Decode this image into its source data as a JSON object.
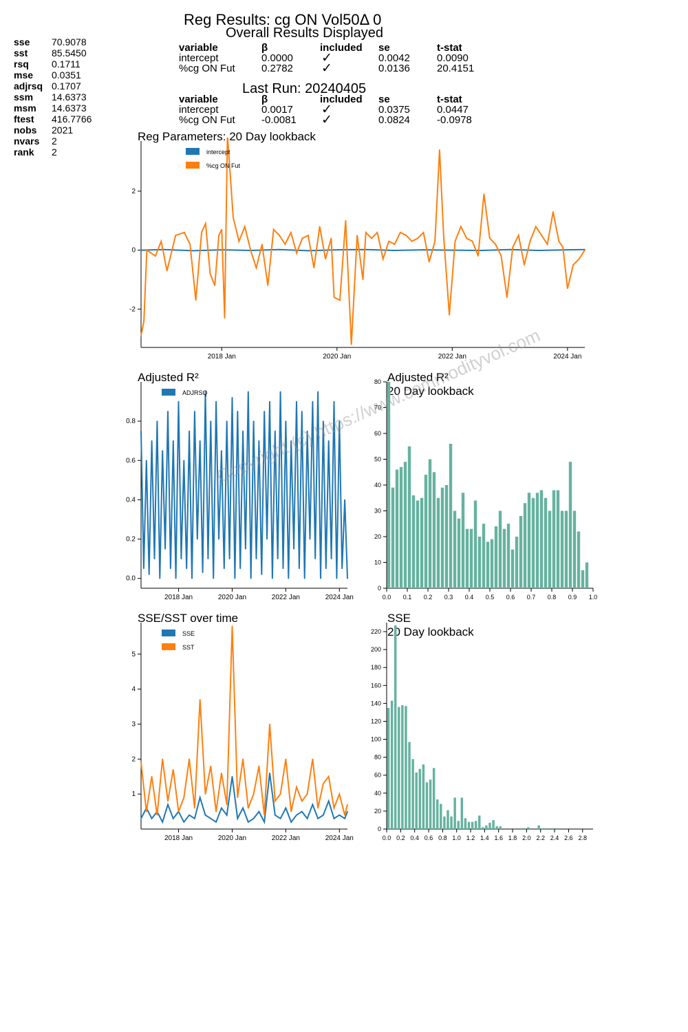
{
  "header": {
    "title": "Reg Results: cg ON Vol50Δ 0",
    "subtitle": "Overall Results Displayed",
    "last_run": "Last Run: 20240405"
  },
  "stats": [
    {
      "k": "sse",
      "v": "70.9078"
    },
    {
      "k": "sst",
      "v": "85.5450"
    },
    {
      "k": "rsq",
      "v": "0.1711"
    },
    {
      "k": "mse",
      "v": "0.0351"
    },
    {
      "k": "adjrsq",
      "v": "0.1707"
    },
    {
      "k": "ssm",
      "v": "14.6373"
    },
    {
      "k": "msm",
      "v": "14.6373"
    },
    {
      "k": "ftest",
      "v": "416.7766"
    },
    {
      "k": "nobs",
      "v": "2021"
    },
    {
      "k": "nvars",
      "v": "2"
    },
    {
      "k": "rank",
      "v": "2"
    }
  ],
  "table_headers": [
    "variable",
    "β",
    "included",
    "se",
    "t-stat"
  ],
  "overall_table": [
    [
      "intercept",
      "0.0000",
      "✓",
      "0.0042",
      "0.0090"
    ],
    [
      "%cg ON Fut",
      "0.2782",
      "✓",
      "0.0136",
      "20.4151"
    ]
  ],
  "last_table": [
    [
      "intercept",
      "0.0017",
      "✓",
      "0.0375",
      "0.0447"
    ],
    [
      "%cg ON Fut",
      "-0.0081",
      "✓",
      "0.0824",
      "-0.0978"
    ]
  ],
  "watermark": "Copyright (c) https://www.commodityvol.com",
  "colors": {
    "blue": "#1f77b4",
    "orange": "#ff7f0e",
    "teal": "#66b2a0"
  },
  "chart_data": [
    {
      "id": "params",
      "type": "line",
      "title": "Reg Parameters: 20 Day lookback",
      "ylim": [
        -3.3,
        3.7
      ],
      "yticks": [
        -2,
        0,
        2
      ],
      "xticks": [
        "2018 Jan",
        "2020 Jan",
        "2022 Jan",
        "2024 Jan"
      ],
      "xtick_pos": [
        2018,
        2020,
        2022,
        2024
      ],
      "xrange": [
        2016.6,
        2024.3
      ],
      "series": [
        {
          "name": "intercept",
          "color": "#1f77b4",
          "x": [
            2016.6,
            2017.0,
            2017.5,
            2018.0,
            2018.5,
            2019.0,
            2019.5,
            2020.0,
            2020.5,
            2021.0,
            2021.5,
            2022.0,
            2022.5,
            2023.0,
            2023.5,
            2024.0,
            2024.3
          ],
          "y": [
            0.0,
            0.02,
            -0.02,
            0.01,
            -0.01,
            0.02,
            -0.02,
            0.01,
            0.02,
            -0.01,
            0.01,
            0.0,
            -0.01,
            0.02,
            -0.01,
            0.01,
            0.02
          ]
        },
        {
          "name": "%cg ON Fut",
          "color": "#ff7f0e",
          "x": [
            2016.6,
            2016.65,
            2016.7,
            2016.85,
            2016.95,
            2017.05,
            2017.2,
            2017.35,
            2017.45,
            2017.55,
            2017.65,
            2017.72,
            2017.8,
            2017.88,
            2017.95,
            2018.0,
            2018.05,
            2018.1,
            2018.2,
            2018.3,
            2018.4,
            2018.5,
            2018.6,
            2018.7,
            2018.8,
            2018.9,
            2019.0,
            2019.1,
            2019.2,
            2019.3,
            2019.4,
            2019.5,
            2019.6,
            2019.7,
            2019.8,
            2019.9,
            2019.95,
            2020.05,
            2020.15,
            2020.25,
            2020.35,
            2020.45,
            2020.5,
            2020.6,
            2020.7,
            2020.8,
            2020.9,
            2021.0,
            2021.1,
            2021.2,
            2021.3,
            2021.4,
            2021.5,
            2021.6,
            2021.7,
            2021.78,
            2021.85,
            2021.95,
            2022.05,
            2022.15,
            2022.25,
            2022.35,
            2022.45,
            2022.55,
            2022.65,
            2022.75,
            2022.85,
            2022.95,
            2023.05,
            2023.15,
            2023.25,
            2023.35,
            2023.45,
            2023.55,
            2023.65,
            2023.75,
            2023.85,
            2023.92,
            2024.0,
            2024.1,
            2024.2,
            2024.3
          ],
          "y": [
            -2.9,
            -2.4,
            0.0,
            -0.2,
            0.3,
            -0.7,
            0.5,
            0.6,
            0.2,
            -1.7,
            0.6,
            0.9,
            -0.8,
            -1.2,
            0.5,
            0.7,
            -2.3,
            3.9,
            1.1,
            0.3,
            0.8,
            0.0,
            -0.6,
            0.2,
            -1.2,
            0.7,
            0.5,
            0.2,
            0.6,
            -0.1,
            0.4,
            0.5,
            -0.6,
            0.8,
            -0.3,
            0.4,
            -1.6,
            -1.7,
            1.0,
            -3.2,
            0.5,
            -1.0,
            0.6,
            0.4,
            0.6,
            -0.3,
            0.3,
            0.2,
            0.6,
            0.5,
            0.3,
            0.4,
            0.6,
            -0.4,
            0.3,
            3.4,
            0.5,
            -2.2,
            0.3,
            0.8,
            0.4,
            0.3,
            -0.2,
            1.9,
            0.4,
            0.2,
            -0.2,
            -1.6,
            0.1,
            0.5,
            -0.5,
            0.3,
            0.8,
            0.5,
            0.2,
            1.3,
            0.3,
            0.1,
            -1.3,
            -0.5,
            -0.3,
            0.0
          ]
        }
      ]
    },
    {
      "id": "adjrsq",
      "type": "line",
      "title": "Adjusted R²",
      "ylim": [
        -0.05,
        1.0
      ],
      "yticks": [
        0.0,
        0.2,
        0.4,
        0.6,
        0.8
      ],
      "ytick_labels": [
        "0.0",
        "0.2",
        "0.4",
        "0.6",
        "0.8"
      ],
      "xticks": [
        "2018 Jan",
        "2020 Jan",
        "2022 Jan",
        "2024 Jan"
      ],
      "xtick_pos": [
        2018,
        2020,
        2022,
        2024
      ],
      "xrange": [
        2016.6,
        2024.3
      ],
      "series": [
        {
          "name": "ADJRSQ",
          "color": "#1f77b4",
          "x": [
            2016.6,
            2016.7,
            2016.8,
            2016.9,
            2017.0,
            2017.1,
            2017.2,
            2017.3,
            2017.4,
            2017.5,
            2017.6,
            2017.7,
            2017.8,
            2017.9,
            2018.0,
            2018.1,
            2018.2,
            2018.3,
            2018.4,
            2018.5,
            2018.6,
            2018.7,
            2018.8,
            2018.9,
            2019.0,
            2019.1,
            2019.2,
            2019.3,
            2019.4,
            2019.5,
            2019.6,
            2019.7,
            2019.8,
            2019.9,
            2020.0,
            2020.1,
            2020.2,
            2020.3,
            2020.4,
            2020.5,
            2020.6,
            2020.7,
            2020.8,
            2020.9,
            2021.0,
            2021.1,
            2021.2,
            2021.3,
            2021.4,
            2021.5,
            2021.6,
            2021.7,
            2021.8,
            2021.9,
            2022.0,
            2022.1,
            2022.2,
            2022.3,
            2022.4,
            2022.5,
            2022.6,
            2022.7,
            2022.8,
            2022.9,
            2023.0,
            2023.1,
            2023.2,
            2023.3,
            2023.4,
            2023.5,
            2023.6,
            2023.7,
            2023.8,
            2023.9,
            2024.0,
            2024.1,
            2024.2,
            2024.3
          ],
          "y": [
            0.75,
            0.05,
            0.6,
            0.02,
            0.7,
            0.1,
            0.8,
            0.0,
            0.65,
            0.15,
            0.85,
            0.05,
            0.7,
            0.0,
            0.9,
            0.1,
            0.6,
            0.05,
            0.75,
            0.0,
            0.85,
            0.2,
            0.7,
            0.03,
            0.95,
            0.1,
            0.8,
            0.0,
            0.9,
            0.2,
            0.65,
            0.05,
            0.8,
            0.1,
            0.92,
            0.0,
            0.85,
            0.05,
            0.75,
            0.15,
            0.95,
            0.0,
            0.8,
            0.1,
            0.7,
            0.02,
            0.85,
            0.2,
            0.9,
            0.0,
            0.75,
            0.1,
            0.95,
            0.05,
            0.8,
            0.0,
            0.7,
            0.15,
            0.9,
            0.05,
            0.85,
            0.0,
            0.75,
            0.2,
            0.9,
            0.1,
            0.95,
            0.0,
            0.8,
            0.05,
            0.7,
            0.1,
            0.9,
            0.0,
            0.8,
            0.05,
            0.4,
            0.0
          ]
        }
      ]
    },
    {
      "id": "adjrsq_hist",
      "type": "bar",
      "title": "Adjusted R²",
      "subtitle": "20 Day lookback",
      "ylim": [
        0,
        80
      ],
      "yticks": [
        0,
        10,
        20,
        30,
        40,
        50,
        60,
        70,
        80
      ],
      "xticks": [
        "0.0",
        "0.1",
        "0.2",
        "0.3",
        "0.4",
        "0.5",
        "0.6",
        "0.7",
        "0.8",
        "0.9",
        "1.0"
      ],
      "xrange": [
        0,
        1.0
      ],
      "bin_width": 0.02,
      "values": [
        80,
        39,
        46,
        47,
        49,
        55,
        36,
        34,
        35,
        44,
        50,
        45,
        35,
        39,
        40,
        56,
        30,
        27,
        37,
        23,
        23,
        34,
        20,
        25,
        18,
        19,
        24,
        30,
        23,
        25,
        15,
        20,
        28,
        33,
        37,
        35,
        37,
        38,
        35,
        30,
        38,
        38,
        30,
        30,
        49,
        30,
        22,
        7,
        10
      ]
    },
    {
      "id": "ssesst",
      "type": "line",
      "title": "SSE/SST over time",
      "ylim": [
        0,
        5.9
      ],
      "yticks": [
        1,
        2,
        3,
        4,
        5
      ],
      "xticks": [
        "2018 Jan",
        "2020 Jan",
        "2022 Jan",
        "2024 Jan"
      ],
      "xtick_pos": [
        2018,
        2020,
        2022,
        2024
      ],
      "xrange": [
        2016.6,
        2024.3
      ],
      "series": [
        {
          "name": "SSE",
          "color": "#1f77b4",
          "x": [
            2016.6,
            2016.8,
            2017.0,
            2017.2,
            2017.4,
            2017.6,
            2017.8,
            2018.0,
            2018.2,
            2018.4,
            2018.6,
            2018.8,
            2019.0,
            2019.2,
            2019.4,
            2019.6,
            2019.8,
            2020.0,
            2020.2,
            2020.4,
            2020.6,
            2020.8,
            2021.0,
            2021.2,
            2021.4,
            2021.6,
            2021.8,
            2022.0,
            2022.2,
            2022.4,
            2022.6,
            2022.8,
            2023.0,
            2023.2,
            2023.4,
            2023.6,
            2023.8,
            2024.0,
            2024.2,
            2024.3
          ],
          "y": [
            0.3,
            0.6,
            0.3,
            0.5,
            0.2,
            0.7,
            0.3,
            0.5,
            0.2,
            0.4,
            0.3,
            0.9,
            0.4,
            0.3,
            0.2,
            0.6,
            0.4,
            1.5,
            0.3,
            0.6,
            0.2,
            0.3,
            0.5,
            0.2,
            1.6,
            0.4,
            0.3,
            0.6,
            0.2,
            0.4,
            0.5,
            0.3,
            0.7,
            0.3,
            0.4,
            0.8,
            0.3,
            0.4,
            0.3,
            0.5
          ]
        },
        {
          "name": "SST",
          "color": "#ff7f0e",
          "x": [
            2016.6,
            2016.8,
            2017.0,
            2017.2,
            2017.4,
            2017.6,
            2017.8,
            2018.0,
            2018.2,
            2018.4,
            2018.6,
            2018.8,
            2019.0,
            2019.2,
            2019.4,
            2019.6,
            2019.8,
            2020.0,
            2020.2,
            2020.4,
            2020.6,
            2020.8,
            2021.0,
            2021.2,
            2021.4,
            2021.6,
            2021.8,
            2022.0,
            2022.2,
            2022.4,
            2022.6,
            2022.8,
            2023.0,
            2023.2,
            2023.4,
            2023.6,
            2023.8,
            2024.0,
            2024.2,
            2024.3
          ],
          "y": [
            1.9,
            0.5,
            1.5,
            0.4,
            2.0,
            0.8,
            1.7,
            0.5,
            0.9,
            2.0,
            0.6,
            3.7,
            1.0,
            1.8,
            0.5,
            1.6,
            0.7,
            5.8,
            0.9,
            2.0,
            0.6,
            1.0,
            1.8,
            0.4,
            3.0,
            0.8,
            1.0,
            2.0,
            0.5,
            1.2,
            0.8,
            1.0,
            2.0,
            0.6,
            1.3,
            1.5,
            0.6,
            1.0,
            0.4,
            0.7
          ]
        }
      ]
    },
    {
      "id": "sse_hist",
      "type": "bar",
      "title": "SSE",
      "subtitle": "20 Day lookback",
      "ylim": [
        0,
        230
      ],
      "yticks": [
        0,
        20,
        40,
        60,
        80,
        100,
        120,
        140,
        160,
        180,
        200,
        220
      ],
      "xticks": [
        "0.0",
        "0.2",
        "0.4",
        "0.6",
        "0.8",
        "1.0",
        "1.2",
        "1.4",
        "1.6",
        "1.8",
        "2.0",
        "2.2",
        "2.4",
        "2.6",
        "2.8"
      ],
      "xrange": [
        0,
        2.95
      ],
      "bin_width": 0.05,
      "values": [
        135,
        143,
        227,
        136,
        138,
        137,
        97,
        78,
        63,
        67,
        72,
        52,
        55,
        68,
        33,
        28,
        14,
        21,
        14,
        35,
        9,
        35,
        12,
        8,
        8,
        9,
        15,
        2,
        4,
        7,
        10,
        3,
        3,
        0,
        0,
        0,
        0,
        0,
        1,
        1,
        2,
        0,
        0,
        4,
        1,
        1,
        0,
        1,
        1
      ]
    }
  ]
}
